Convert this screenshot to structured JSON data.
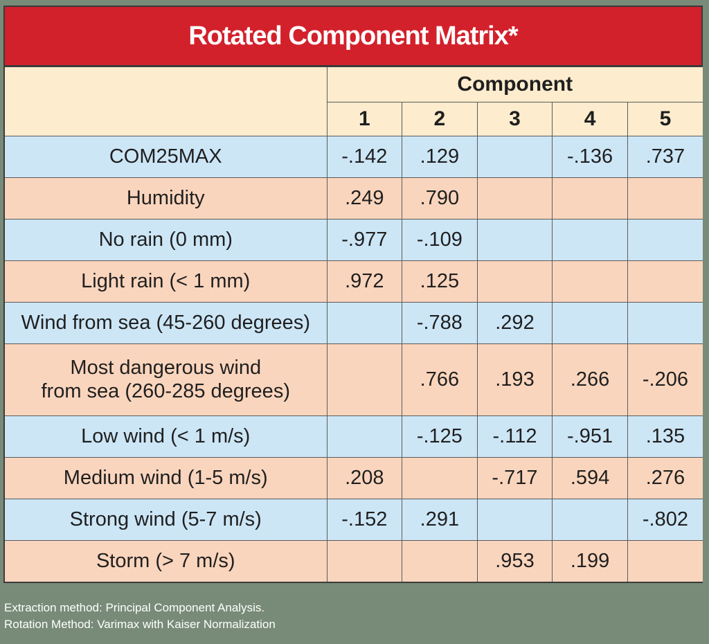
{
  "title": "Rotated Component Matrix*",
  "header": {
    "component_label": "Component",
    "columns": [
      "1",
      "2",
      "3",
      "4",
      "5"
    ]
  },
  "rows": [
    {
      "label": "COM25MAX",
      "values": [
        "-.142",
        ".129",
        "",
        "-.136",
        ".737"
      ],
      "shade": "blue"
    },
    {
      "label": "Humidity",
      "values": [
        ".249",
        ".790",
        "",
        "",
        ""
      ],
      "shade": "peach"
    },
    {
      "label": "No rain (0 mm)",
      "values": [
        "-.977",
        "-.109",
        "",
        "",
        ""
      ],
      "shade": "blue"
    },
    {
      "label": "Light rain (< 1 mm)",
      "values": [
        ".972",
        ".125",
        "",
        "",
        ""
      ],
      "shade": "peach"
    },
    {
      "label": "Wind from sea (45-260 degrees)",
      "values": [
        "",
        "-.788",
        ".292",
        "",
        ""
      ],
      "shade": "blue"
    },
    {
      "label_line1": "Most dangerous wind",
      "label_line2": "from sea (260-285 degrees)",
      "values": [
        "",
        ".766",
        ".193",
        ".266",
        "-.206"
      ],
      "shade": "peach"
    },
    {
      "label": "Low wind (< 1 m/s)",
      "values": [
        "",
        "-.125",
        "-.112",
        "-.951",
        ".135"
      ],
      "shade": "blue"
    },
    {
      "label": "Medium wind (1-5 m/s)",
      "values": [
        ".208",
        "",
        "-.717",
        ".594",
        ".276"
      ],
      "shade": "peach"
    },
    {
      "label": "Strong wind (5-7 m/s)",
      "values": [
        "-.152",
        ".291",
        "",
        "",
        "-.802"
      ],
      "shade": "blue"
    },
    {
      "label": "Storm (> 7 m/s)",
      "values": [
        "",
        "",
        ".953",
        ".199",
        ""
      ],
      "shade": "peach"
    }
  ],
  "footnote": {
    "line1": "Extraction method: Principal Component Analysis.",
    "line2": "Rotation Method: Varimax with Kaiser Normalization"
  },
  "colors": {
    "title_bg": "#d3212c",
    "header_bg": "#fdeccd",
    "row_blue": "#cce6f6",
    "row_peach": "#fad5bd",
    "page_bg": "#788b78"
  }
}
